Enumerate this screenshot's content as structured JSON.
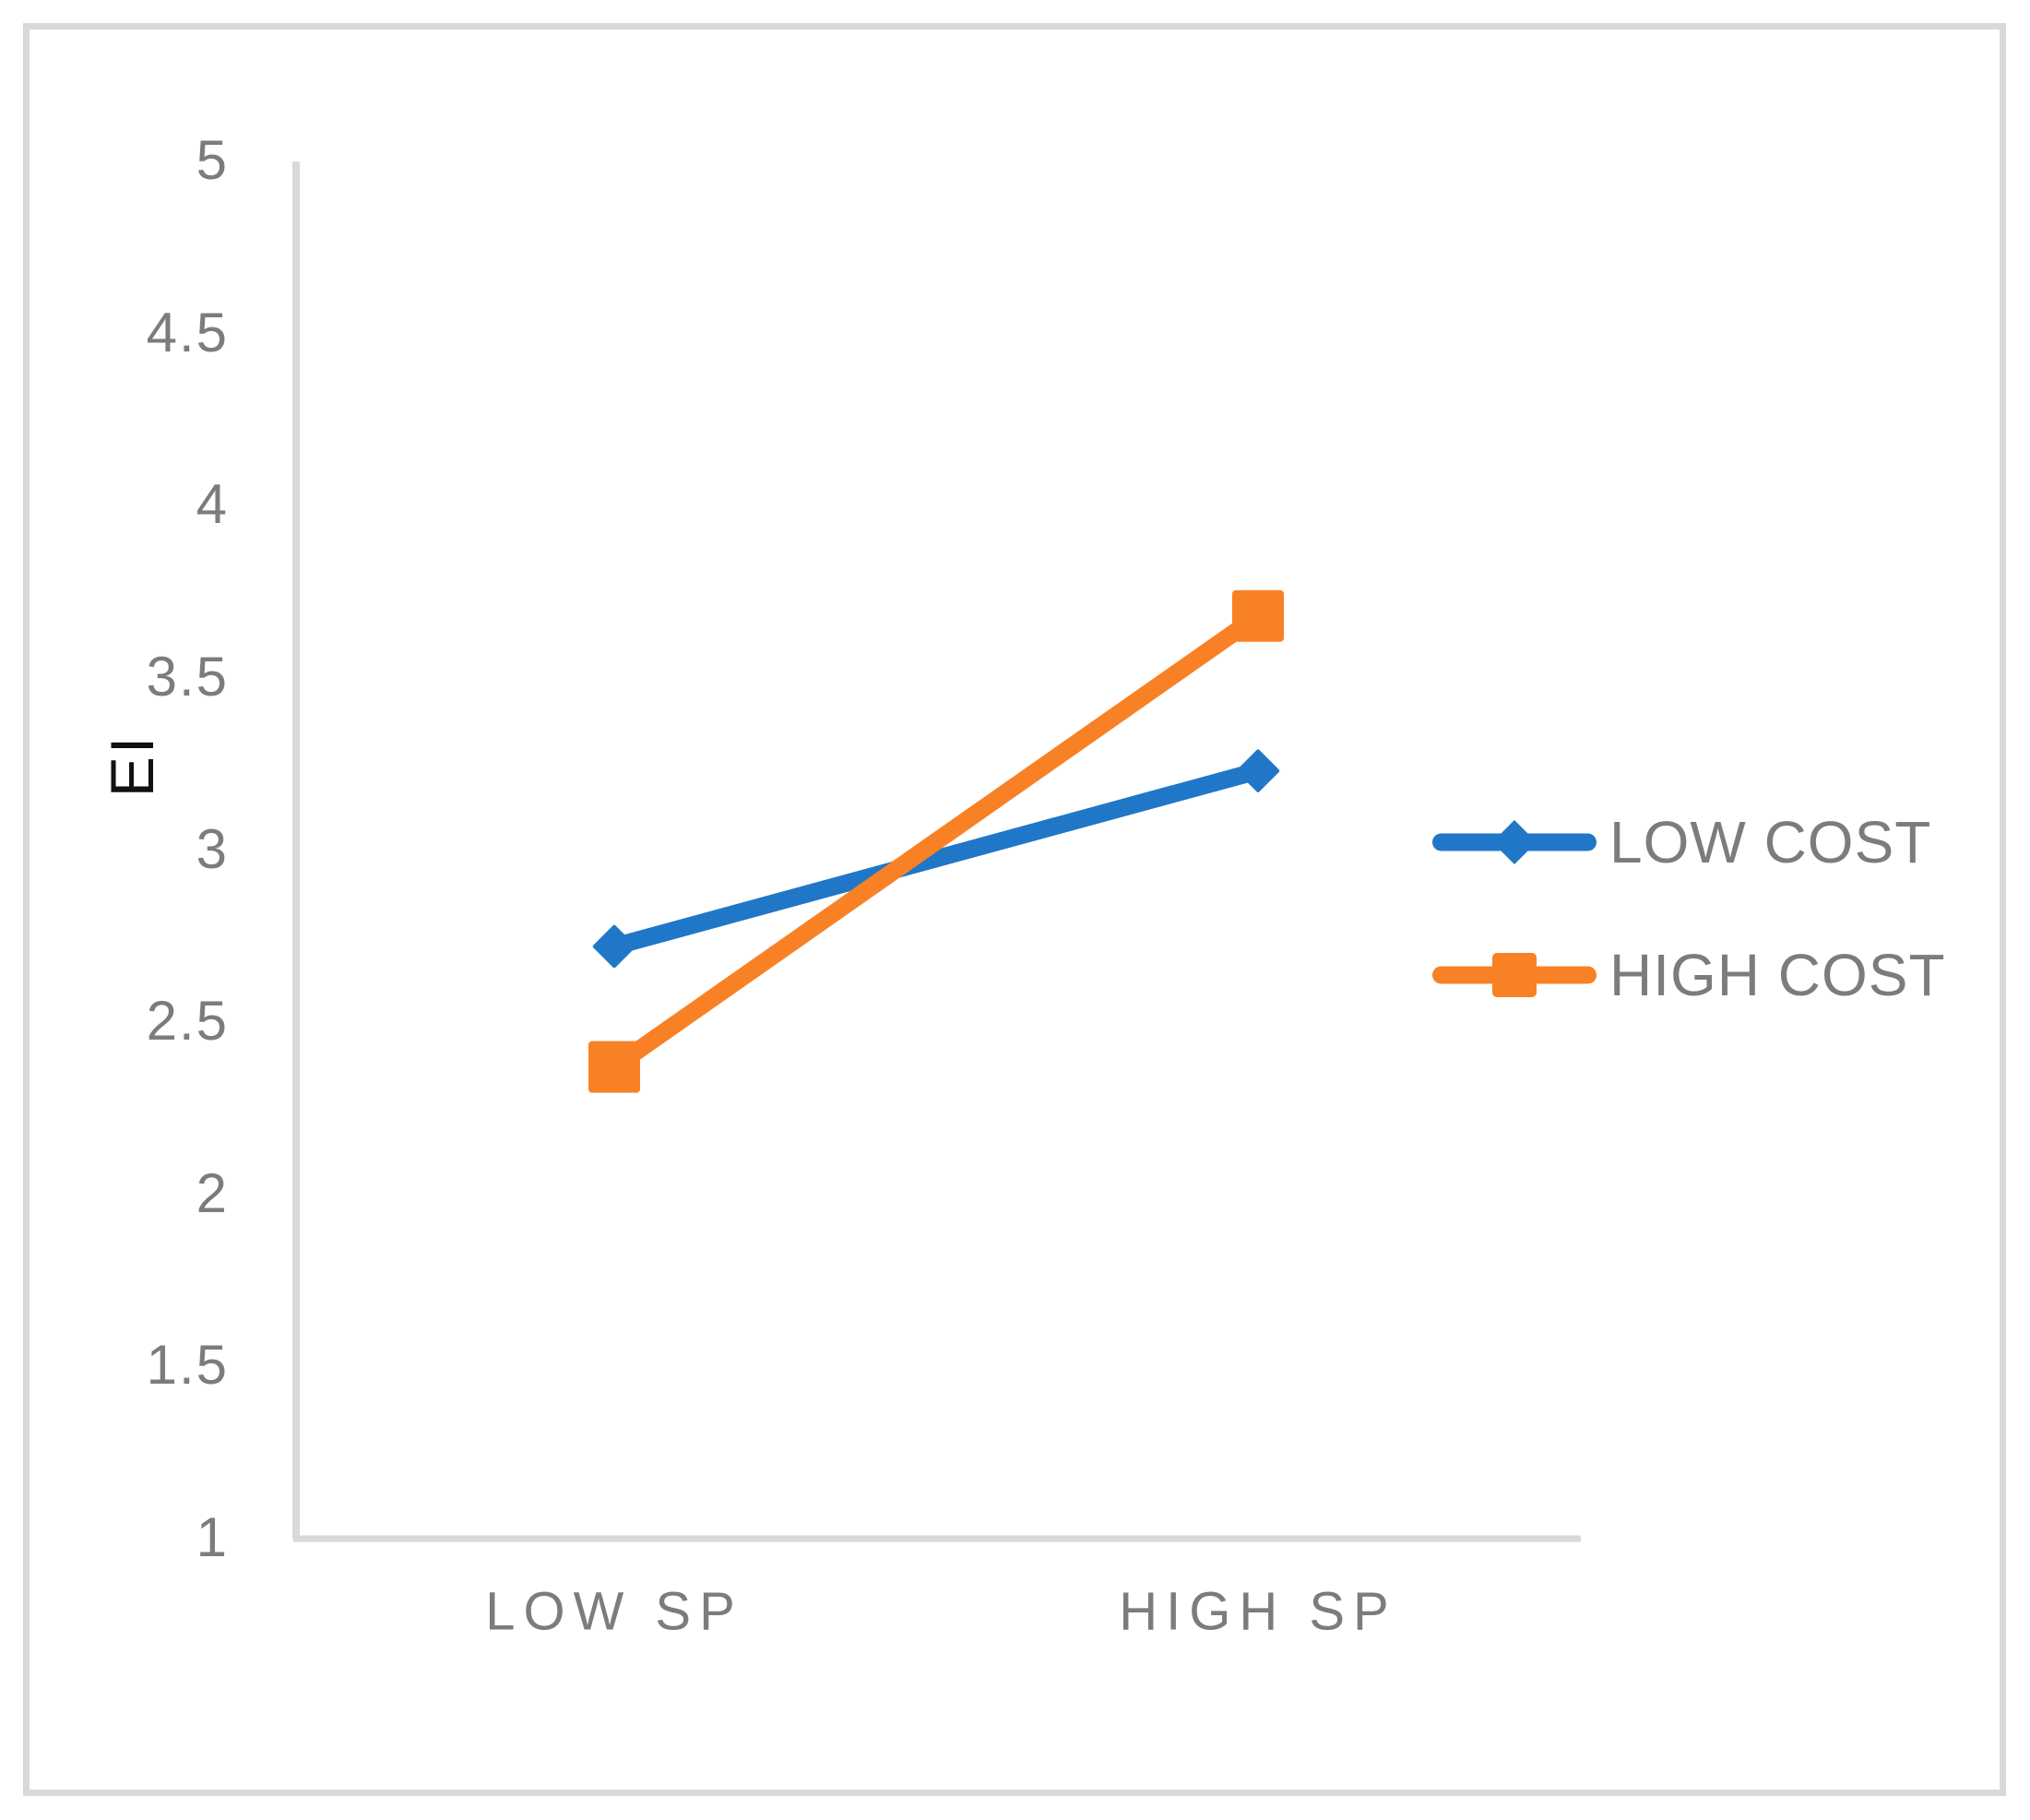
{
  "chart_data": {
    "type": "line",
    "title": "",
    "ylabel": "EI",
    "xlabel": "",
    "categories": [
      "LOW SP",
      "HIGH SP"
    ],
    "series": [
      {
        "name": "LOW COST",
        "values": [
          2.72,
          3.23
        ],
        "color": "#2177C7",
        "marker": "diamond"
      },
      {
        "name": "HIGH COST",
        "values": [
          2.37,
          3.68
        ],
        "color": "#F98125",
        "marker": "square"
      }
    ],
    "ylim": [
      1,
      5
    ],
    "yticks": [
      5,
      4.5,
      4,
      3.5,
      3,
      2.5,
      2,
      1.5,
      1
    ],
    "ytick_labels": [
      "5",
      "4.5",
      "4",
      "3.5",
      "3",
      "2.5",
      "2",
      "1.5",
      "1"
    ],
    "grid": "off",
    "legend_position": "right-middle"
  },
  "colors": {
    "background": "#FFFFFF",
    "frame_border": "#D9D9D9",
    "axis_line": "#D9D9D9",
    "tick_text": "#7C7C7C",
    "category_text": "#7C7C7C",
    "legend_text": "#7C7C7C",
    "axis_title_text": "#111111"
  }
}
